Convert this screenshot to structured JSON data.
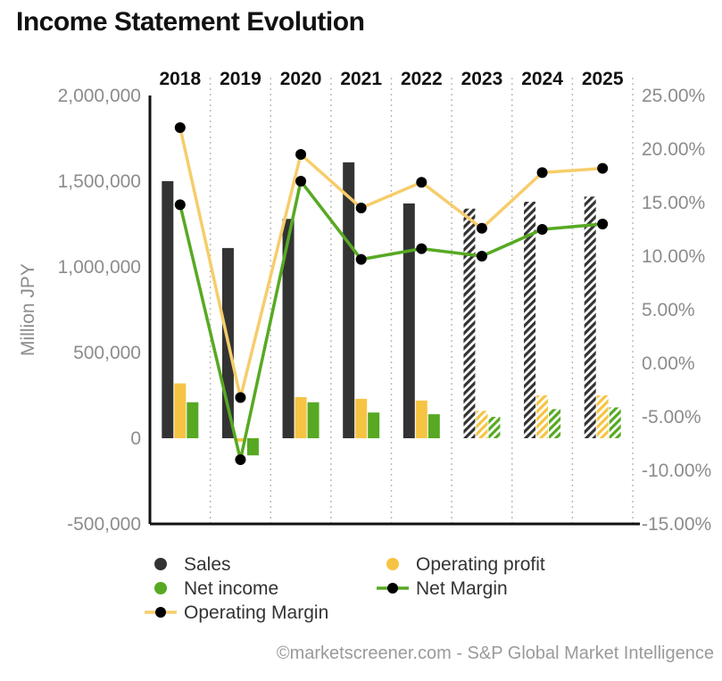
{
  "chart_data": {
    "type": "bar",
    "title": "Income Statement Evolution",
    "ylabel": "Million JPY",
    "categories": [
      "2018",
      "2019",
      "2020",
      "2021",
      "2022",
      "2023",
      "2024",
      "2025"
    ],
    "estimated_from_index": 5,
    "y_left": {
      "min": -500000,
      "max": 2000000,
      "ticks": [
        "2,000,000",
        "1,500,000",
        "1,000,000",
        "500,000",
        "0",
        "-500,000"
      ],
      "tick_values": [
        2000000,
        1500000,
        1000000,
        500000,
        0,
        -500000
      ]
    },
    "y_right": {
      "min": -15,
      "max": 25,
      "ticks": [
        "25.00%",
        "20.00%",
        "15.00%",
        "10.00%",
        "5.00%",
        "0.00%",
        "-5.00%",
        "-10.00%",
        "-15.00%"
      ],
      "tick_values": [
        25,
        20,
        15,
        10,
        5,
        0,
        -5,
        -10,
        -15
      ]
    },
    "series": [
      {
        "name": "Sales",
        "kind": "bar",
        "axis": "left",
        "color": "#333333",
        "values": [
          1500000,
          1110000,
          1280000,
          1610000,
          1370000,
          1340000,
          1380000,
          1410000
        ]
      },
      {
        "name": "Operating profit",
        "kind": "bar",
        "axis": "left",
        "color": "#f6c443",
        "values": [
          320000,
          -20000,
          240000,
          230000,
          220000,
          160000,
          250000,
          250000
        ]
      },
      {
        "name": "Net income",
        "kind": "bar",
        "axis": "left",
        "color": "#57a923",
        "values": [
          210000,
          -100000,
          210000,
          150000,
          140000,
          125000,
          170000,
          180000
        ]
      },
      {
        "name": "Net Margin",
        "kind": "line",
        "axis": "right",
        "color": "#57a923",
        "values": [
          14.8,
          -9.0,
          17.0,
          9.7,
          10.7,
          10.0,
          12.5,
          13.0
        ]
      },
      {
        "name": "Operating Margin",
        "kind": "line",
        "axis": "right",
        "color": "#f6cd6b",
        "values": [
          22.0,
          -3.2,
          19.5,
          14.5,
          16.9,
          12.6,
          17.8,
          18.2
        ]
      }
    ],
    "legend": [
      {
        "name": "Sales",
        "marker": "dot",
        "color": "#333333"
      },
      {
        "name": "Operating profit",
        "marker": "dot",
        "color": "#f6c443"
      },
      {
        "name": "Net income",
        "marker": "dot",
        "color": "#57a923"
      },
      {
        "name": "Net Margin",
        "marker": "line-dot",
        "color": "#57a923"
      },
      {
        "name": "Operating Margin",
        "marker": "line-dot",
        "color": "#f6cd6b"
      }
    ],
    "legend_placement": "bottom",
    "grid": "vertical-dotted",
    "credit": "©marketscreener.com - S&P Global Market Intelligence"
  }
}
